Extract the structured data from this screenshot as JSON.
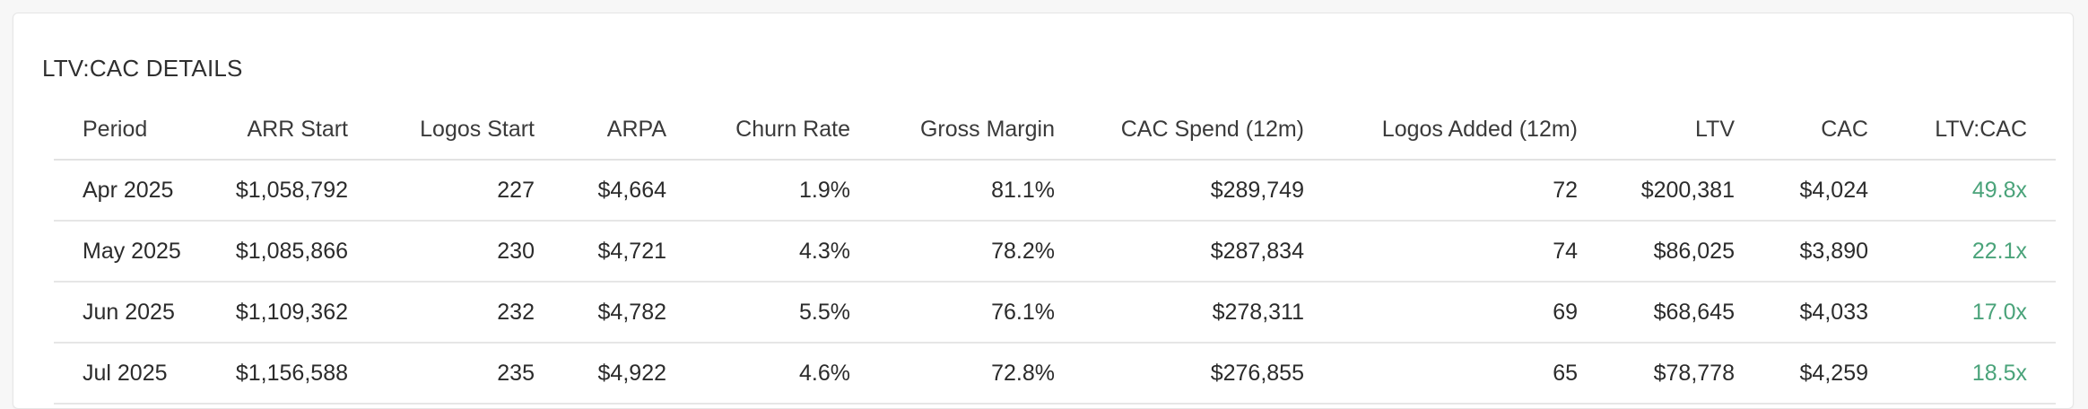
{
  "card": {
    "title": "LTV:CAC DETAILS"
  },
  "table": {
    "headers": [
      "Period",
      "ARR Start",
      "Logos Start",
      "ARPA",
      "Churn Rate",
      "Gross Margin",
      "CAC Spend (12m)",
      "Logos Added (12m)",
      "LTV",
      "CAC",
      "LTV:CAC"
    ],
    "rows": [
      [
        "Apr 2025",
        "$1,058,792",
        "227",
        "$4,664",
        "1.9%",
        "81.1%",
        "$289,749",
        "72",
        "$200,381",
        "$4,024",
        "49.8x"
      ],
      [
        "May 2025",
        "$1,085,866",
        "230",
        "$4,721",
        "4.3%",
        "78.2%",
        "$287,834",
        "74",
        "$86,025",
        "$3,890",
        "22.1x"
      ],
      [
        "Jun 2025",
        "$1,109,362",
        "232",
        "$4,782",
        "5.5%",
        "76.1%",
        "$278,311",
        "69",
        "$68,645",
        "$4,033",
        "17.0x"
      ],
      [
        "Jul 2025",
        "$1,156,588",
        "235",
        "$4,922",
        "4.6%",
        "72.8%",
        "$276,855",
        "65",
        "$78,778",
        "$4,259",
        "18.5x"
      ]
    ]
  },
  "colors": {
    "ratio_positive": "#4aa37a"
  }
}
